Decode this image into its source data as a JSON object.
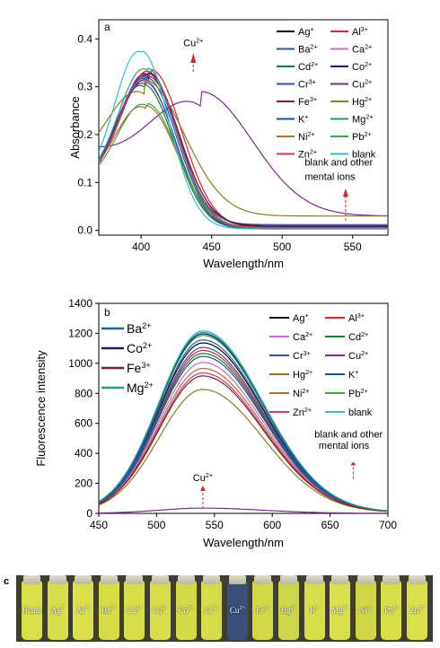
{
  "chart_data": [
    {
      "panel": "a",
      "type": "line",
      "xlabel": "Wavelength/nm",
      "ylabel": "Absorbance",
      "xlim": [
        370,
        575
      ],
      "ylim": [
        -0.01,
        0.44
      ],
      "xticks": [
        400,
        450,
        500,
        550
      ],
      "yticks": [
        0.0,
        0.1,
        0.2,
        0.3,
        0.4
      ],
      "ytick_labels": [
        "0.0",
        "0.1",
        "0.2",
        "0.3",
        "0.4"
      ],
      "legend_position": "top-right",
      "annotations": [
        {
          "text": "Cu",
          "sup": "2+",
          "x": 437,
          "y": 0.3
        },
        {
          "text": "blank and other",
          "x": 516,
          "y": 0.115
        },
        {
          "text": "mental ions",
          "x": 516,
          "y": 0.09
        }
      ],
      "series": [
        {
          "name": "Ag",
          "sup": "+",
          "color": "#000000",
          "peak_x": 405,
          "peak_y": 0.325,
          "width": 30,
          "tail_y": 0.005
        },
        {
          "name": "Al",
          "sup": "3+",
          "color": "#e8202a",
          "peak_x": 407,
          "peak_y": 0.33,
          "width": 31,
          "tail_y": 0.006
        },
        {
          "name": "Ba",
          "sup": "2+",
          "color": "#1f5fa8",
          "peak_x": 404,
          "peak_y": 0.315,
          "width": 30,
          "tail_y": 0.004
        },
        {
          "name": "Ca",
          "sup": "2+",
          "color": "#c86ad0",
          "peak_x": 403,
          "peak_y": 0.31,
          "width": 29,
          "tail_y": 0.003
        },
        {
          "name": "Cd",
          "sup": "2+",
          "color": "#1b7a2e",
          "peak_x": 402,
          "peak_y": 0.3,
          "width": 30,
          "tail_y": 0.004
        },
        {
          "name": "Co",
          "sup": "2+",
          "color": "#1a1a6e",
          "peak_x": 405,
          "peak_y": 0.32,
          "width": 31,
          "tail_y": 0.008
        },
        {
          "name": "Cr",
          "sup": "3+",
          "color": "#3050c0",
          "peak_x": 404,
          "peak_y": 0.318,
          "width": 30,
          "tail_y": 0.012
        },
        {
          "name": "Cu",
          "sup": "2+",
          "color": "#7b2a8c",
          "peak_x": 442,
          "peak_y": 0.26,
          "width": 52,
          "tail_y": 0.03
        },
        {
          "name": "Fe",
          "sup": "3+",
          "color": "#7a1f2a",
          "peak_x": 405,
          "peak_y": 0.312,
          "width": 31,
          "tail_y": 0.01
        },
        {
          "name": "Hg",
          "sup": "2+",
          "color": "#8a7a20",
          "peak_x": 402,
          "peak_y": 0.285,
          "width": 40,
          "tail_y": 0.03
        },
        {
          "name": "K",
          "sup": "+",
          "color": "#1f4f9a",
          "peak_x": 403,
          "peak_y": 0.305,
          "width": 30,
          "tail_y": 0.004
        },
        {
          "name": "Mg",
          "sup": "2+",
          "color": "#2a9a8a",
          "peak_x": 404,
          "peak_y": 0.335,
          "width": 30,
          "tail_y": 0.004
        },
        {
          "name": "Ni",
          "sup": "2+",
          "color": "#b0702a",
          "peak_x": 403,
          "peak_y": 0.255,
          "width": 32,
          "tail_y": 0.006
        },
        {
          "name": "Pb",
          "sup": "2+",
          "color": "#3aaa3a",
          "peak_x": 404,
          "peak_y": 0.26,
          "width": 31,
          "tail_y": 0.005
        },
        {
          "name": "Zn",
          "sup": "2+",
          "color": "#d0307a",
          "peak_x": 405,
          "peak_y": 0.322,
          "width": 30,
          "tail_y": 0.005
        },
        {
          "name": "blank",
          "sup": "",
          "color": "#30c0c8",
          "peak_x": 400,
          "peak_y": 0.372,
          "width": 28,
          "tail_y": 0.003
        }
      ]
    },
    {
      "panel": "b",
      "type": "line",
      "xlabel": "Wavelength/nm",
      "ylabel": "Fluorescence intensity",
      "xlim": [
        450,
        700
      ],
      "ylim": [
        0,
        1400
      ],
      "xticks": [
        450,
        500,
        550,
        600,
        650,
        700
      ],
      "yticks": [
        0,
        200,
        400,
        600,
        800,
        1000,
        1200,
        1400
      ],
      "ytick_labels": [
        "0",
        "200",
        "400",
        "600",
        "800",
        "1000",
        "1200",
        "1400"
      ],
      "legend_position": "top-right",
      "inset_legend": [
        {
          "name": "Ba",
          "sup": "2+",
          "color": "#1f5fa8"
        },
        {
          "name": "Co",
          "sup": "2+",
          "color": "#1a1a6e"
        },
        {
          "name": "Fe",
          "sup": "3+",
          "color": "#7a1f2a"
        },
        {
          "name": "Mg",
          "sup": "2+",
          "color": "#2a9a8a"
        }
      ],
      "annotations": [
        {
          "text": "Cu",
          "sup": "2+",
          "x": 540,
          "y": 215
        },
        {
          "text": "blank and other",
          "x": 670,
          "y": 520
        },
        {
          "text": "mental ions",
          "x": 670,
          "y": 440
        }
      ],
      "series": [
        {
          "name": "Ag",
          "sup": "+",
          "color": "#000000",
          "peak": 1130
        },
        {
          "name": "Al",
          "sup": "3+",
          "color": "#e8202a",
          "peak": 1080
        },
        {
          "name": "Ca",
          "sup": "2+",
          "color": "#c86ad0",
          "peak": 1000
        },
        {
          "name": "Cd",
          "sup": "2+",
          "color": "#1b7a2e",
          "peak": 1060
        },
        {
          "name": "Cr",
          "sup": "3+",
          "color": "#3050c0",
          "peak": 1100
        },
        {
          "name": "Cu",
          "sup": "2+",
          "color": "#7b2a8c",
          "peak": 35
        },
        {
          "name": "Hg",
          "sup": "2+",
          "color": "#8a7a20",
          "peak": 820
        },
        {
          "name": "K",
          "sup": "+",
          "color": "#1f4f9a",
          "peak": 1040
        },
        {
          "name": "Ni",
          "sup": "2+",
          "color": "#b0702a",
          "peak": 960
        },
        {
          "name": "Pb",
          "sup": "2+",
          "color": "#3aaa3a",
          "peak": 1180
        },
        {
          "name": "Zn",
          "sup": "2+",
          "color": "#d0307a",
          "peak": 930
        },
        {
          "name": "blank",
          "sup": "",
          "color": "#30c0c8",
          "peak": 1210
        },
        {
          "name": "Ba",
          "sup": "2+",
          "color": "#1f5fa8",
          "peak": 1150,
          "legend": false
        },
        {
          "name": "Co",
          "sup": "2+",
          "color": "#1a1a6e",
          "peak": 1190,
          "legend": false
        },
        {
          "name": "Fe",
          "sup": "3+",
          "color": "#7a1f2a",
          "peak": 910,
          "legend": false
        },
        {
          "name": "Mg",
          "sup": "2+",
          "color": "#2a9a8a",
          "peak": 1200,
          "legend": false
        }
      ]
    }
  ],
  "photo": {
    "panel_label": "c",
    "vials": [
      {
        "label": "Blank",
        "sup": "",
        "color": "#d8e04a"
      },
      {
        "label": "Ag",
        "sup": "+",
        "color": "#d6de48"
      },
      {
        "label": "Al",
        "sup": "3+",
        "color": "#d9e04c"
      },
      {
        "label": "Ba",
        "sup": "2+",
        "color": "#d4dc46"
      },
      {
        "label": "Ca",
        "sup": "2+",
        "color": "#d6de48"
      },
      {
        "label": "Cd",
        "sup": "2+",
        "color": "#d8df4a"
      },
      {
        "label": "Co",
        "sup": "2+",
        "color": "#d2da46"
      },
      {
        "label": "Cr",
        "sup": "3+",
        "color": "#d4dc48"
      },
      {
        "label": "Cu",
        "sup": "2+",
        "color": "#3b4f7a"
      },
      {
        "label": "Fe",
        "sup": "3+",
        "color": "#d0d844"
      },
      {
        "label": "Hg",
        "sup": "2+",
        "color": "#cdd54a"
      },
      {
        "label": "K",
        "sup": "+",
        "color": "#d6de48"
      },
      {
        "label": "Mg",
        "sup": "2+",
        "color": "#d8e04a"
      },
      {
        "label": "Ni",
        "sup": "2+",
        "color": "#cfd746"
      },
      {
        "label": "Pb",
        "sup": "2+",
        "color": "#d6de48"
      },
      {
        "label": "Zn",
        "sup": "2+",
        "color": "#d8e04a"
      }
    ]
  }
}
